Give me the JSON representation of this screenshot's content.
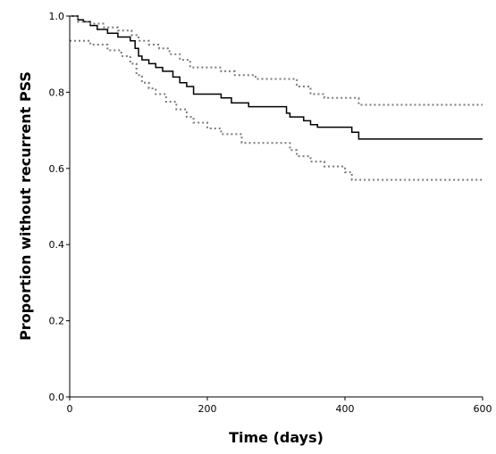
{
  "chart_data": {
    "type": "line",
    "title": "",
    "xlabel": "Time (days)",
    "ylabel": "Proportion without recurrent PSS",
    "xlim": [
      0,
      600
    ],
    "ylim": [
      0.0,
      1.0
    ],
    "x_ticks": [
      0,
      200,
      400,
      600
    ],
    "x_tick_labels": [
      "0",
      "200",
      "400",
      "600"
    ],
    "y_ticks": [
      0.0,
      0.2,
      0.4,
      0.6,
      0.8,
      1.0
    ],
    "y_tick_labels": [
      "0.0",
      "0.2",
      "0.4",
      "0.6",
      "0.8",
      "1.0"
    ],
    "grid": false,
    "legend": "none",
    "series": [
      {
        "style": "solid",
        "color": "#000000",
        "step": true,
        "x": [
          0,
          12,
          20,
          30,
          40,
          55,
          70,
          88,
          95,
          100,
          105,
          115,
          125,
          135,
          150,
          160,
          170,
          180,
          220,
          235,
          260,
          315,
          320,
          340,
          350,
          360,
          410,
          420,
          600
        ],
        "y": [
          1.0,
          0.99,
          0.985,
          0.975,
          0.965,
          0.955,
          0.945,
          0.935,
          0.915,
          0.895,
          0.885,
          0.875,
          0.865,
          0.855,
          0.84,
          0.825,
          0.815,
          0.795,
          0.785,
          0.772,
          0.762,
          0.745,
          0.735,
          0.725,
          0.715,
          0.708,
          0.695,
          0.677,
          0.677
        ]
      },
      {
        "style": "dotted",
        "color": "#7a7a7a",
        "step": true,
        "x": [
          0,
          12,
          30,
          50,
          70,
          90,
          100,
          115,
          130,
          145,
          160,
          175,
          220,
          240,
          270,
          330,
          350,
          370,
          420,
          600
        ],
        "y": [
          1.0,
          0.985,
          0.98,
          0.97,
          0.962,
          0.95,
          0.935,
          0.925,
          0.915,
          0.9,
          0.885,
          0.865,
          0.855,
          0.845,
          0.835,
          0.815,
          0.795,
          0.785,
          0.767,
          0.767
        ]
      },
      {
        "style": "dotted",
        "color": "#7a7a7a",
        "step": true,
        "x": [
          0,
          12,
          30,
          55,
          75,
          88,
          97,
          105,
          115,
          125,
          140,
          155,
          170,
          180,
          200,
          220,
          250,
          320,
          330,
          350,
          370,
          400,
          410,
          600
        ],
        "y": [
          0.935,
          0.935,
          0.925,
          0.91,
          0.895,
          0.875,
          0.845,
          0.825,
          0.81,
          0.795,
          0.775,
          0.755,
          0.735,
          0.72,
          0.705,
          0.69,
          0.667,
          0.648,
          0.632,
          0.618,
          0.605,
          0.59,
          0.57,
          0.57
        ]
      }
    ]
  }
}
